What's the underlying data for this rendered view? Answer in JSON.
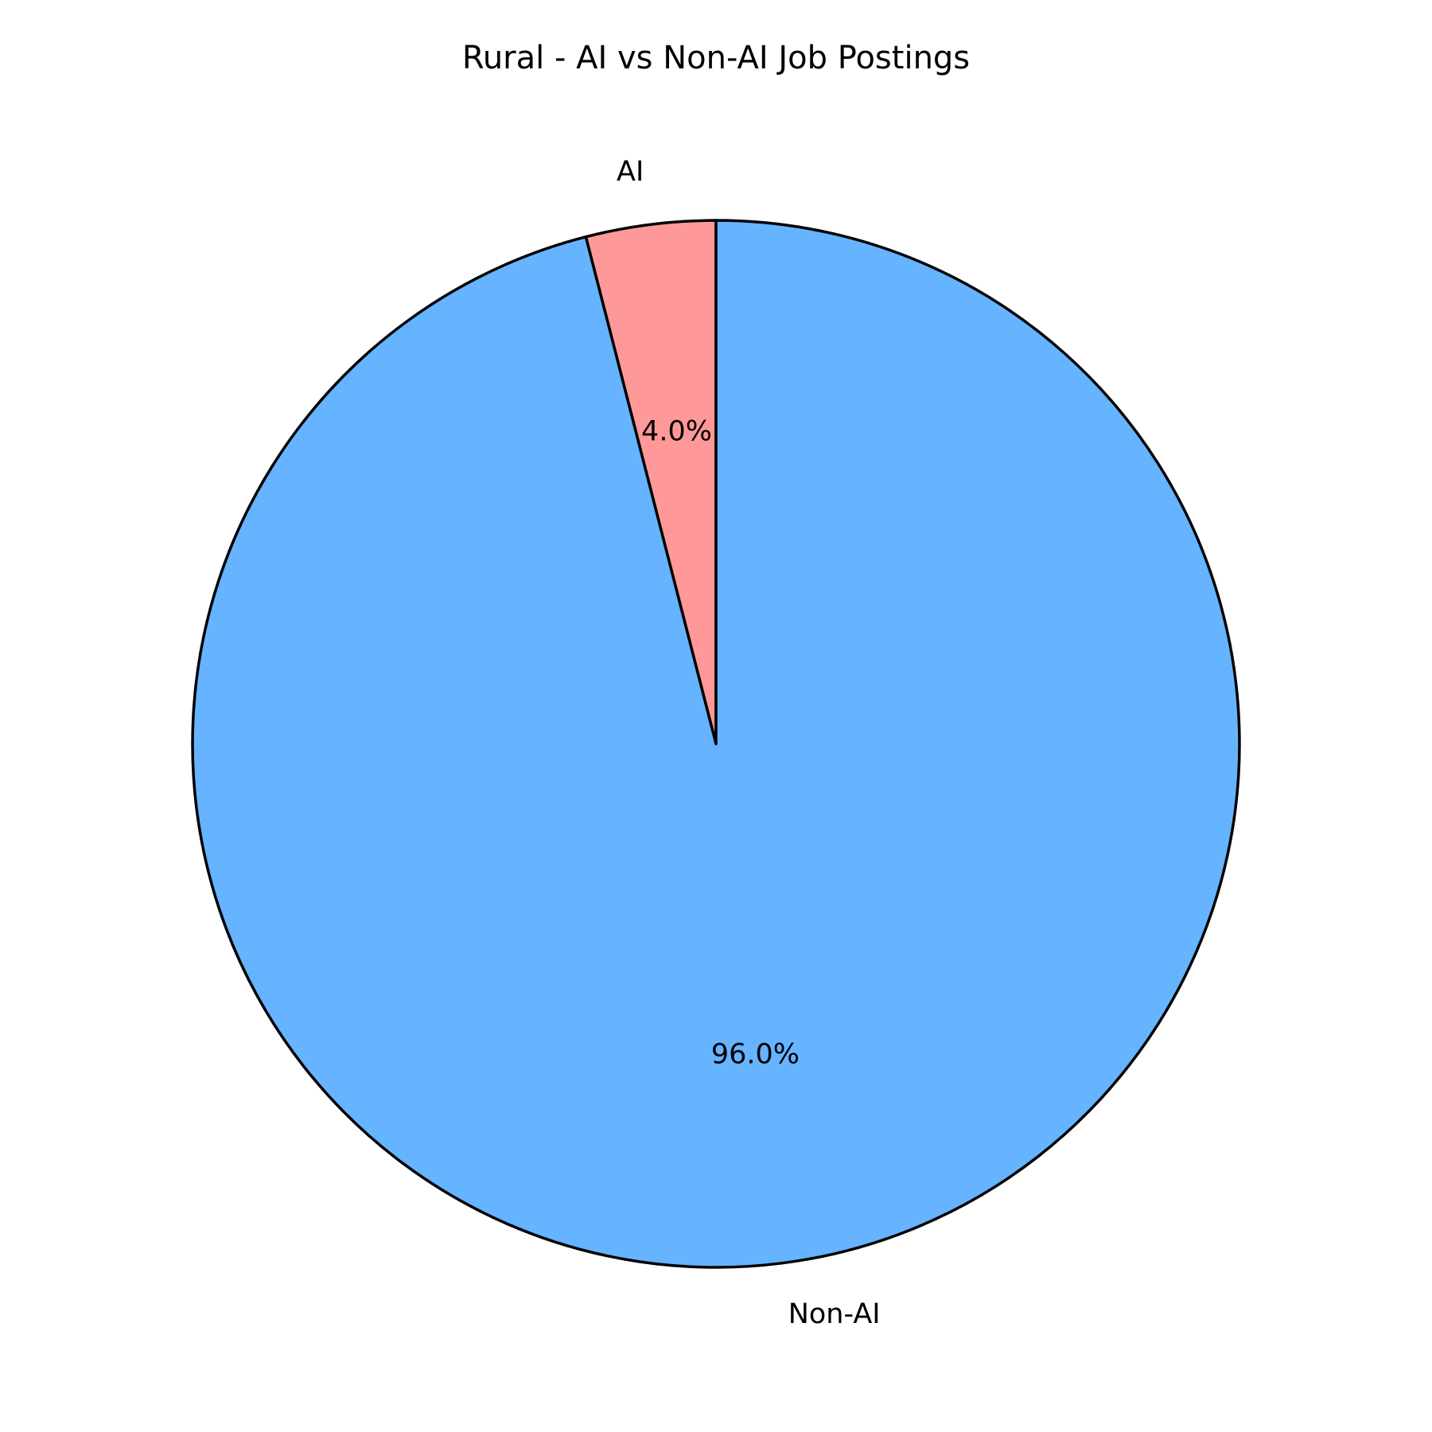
{
  "chart_data": {
    "type": "pie",
    "title": "Rural - AI vs Non-AI Job Postings",
    "start_angle_deg": 90,
    "direction": "counterclockwise",
    "slices": [
      {
        "label": "AI",
        "value": 4.0,
        "pct_label": "4.0%",
        "color": "#ff9999"
      },
      {
        "label": "Non-AI",
        "value": 96.0,
        "pct_label": "96.0%",
        "color": "#66b3ff"
      }
    ],
    "edge_color": "#000000",
    "legend": "none"
  }
}
